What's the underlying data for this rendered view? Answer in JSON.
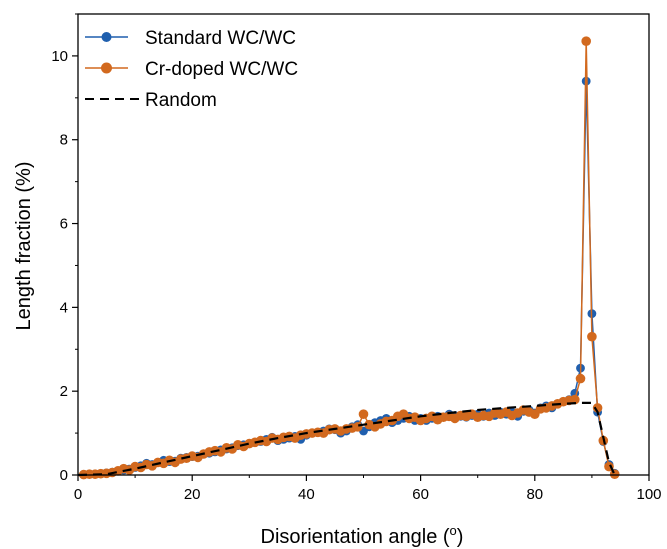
{
  "chart_data": {
    "type": "line",
    "xlabel": "Disorientation angle (",
    "xlabel_sup": "o",
    "xlabel_end": ")",
    "ylabel": "Length fraction (%)",
    "xlim": [
      0,
      100
    ],
    "ylim": [
      0,
      11
    ],
    "xticks": [
      "0",
      "20",
      "40",
      "60",
      "80",
      "100"
    ],
    "yticks": [
      "0",
      "2",
      "4",
      "6",
      "8",
      "10"
    ],
    "legend_position": "top-left",
    "grid": false,
    "series": [
      {
        "name": "Standard WC/WC",
        "color": "#1f5fae",
        "style": "line-marker",
        "x": [
          1,
          2,
          3,
          4,
          5,
          6,
          7,
          8,
          9,
          10,
          11,
          12,
          13,
          14,
          15,
          16,
          17,
          18,
          19,
          20,
          21,
          22,
          23,
          24,
          25,
          26,
          27,
          28,
          29,
          30,
          31,
          32,
          33,
          34,
          35,
          36,
          37,
          38,
          39,
          40,
          41,
          42,
          43,
          44,
          45,
          46,
          47,
          48,
          49,
          50,
          51,
          52,
          53,
          54,
          55,
          56,
          57,
          58,
          59,
          60,
          61,
          62,
          63,
          64,
          65,
          66,
          67,
          68,
          69,
          70,
          71,
          72,
          73,
          74,
          75,
          76,
          77,
          78,
          79,
          80,
          81,
          82,
          83,
          84,
          85,
          86,
          87,
          88,
          89,
          90,
          91,
          92,
          93,
          94
        ],
        "y": [
          0.01,
          0.02,
          0.02,
          0.03,
          0.05,
          0.07,
          0.1,
          0.12,
          0.14,
          0.18,
          0.22,
          0.28,
          0.25,
          0.3,
          0.35,
          0.32,
          0.33,
          0.4,
          0.42,
          0.44,
          0.45,
          0.5,
          0.52,
          0.55,
          0.6,
          0.62,
          0.65,
          0.7,
          0.72,
          0.75,
          0.78,
          0.8,
          0.85,
          0.9,
          0.82,
          0.85,
          0.88,
          0.92,
          0.85,
          0.95,
          1.0,
          1.02,
          1.05,
          1.1,
          1.08,
          1.0,
          1.05,
          1.15,
          1.2,
          1.05,
          1.15,
          1.25,
          1.3,
          1.35,
          1.25,
          1.3,
          1.35,
          1.4,
          1.3,
          1.35,
          1.3,
          1.35,
          1.4,
          1.38,
          1.45,
          1.42,
          1.4,
          1.38,
          1.42,
          1.45,
          1.4,
          1.48,
          1.42,
          1.5,
          1.45,
          1.5,
          1.4,
          1.52,
          1.55,
          1.48,
          1.6,
          1.65,
          1.6,
          1.7,
          1.75,
          1.8,
          1.95,
          2.55,
          9.4,
          3.85,
          1.5,
          0.8,
          0.25,
          0.04
        ]
      },
      {
        "name": "Cr-doped WC/WC",
        "color": "#d2691e",
        "style": "line-marker",
        "x": [
          1,
          2,
          3,
          4,
          5,
          6,
          7,
          8,
          9,
          10,
          11,
          12,
          13,
          14,
          15,
          16,
          17,
          18,
          19,
          20,
          21,
          22,
          23,
          24,
          25,
          26,
          27,
          28,
          29,
          30,
          31,
          32,
          33,
          34,
          35,
          36,
          37,
          38,
          39,
          40,
          41,
          42,
          43,
          44,
          45,
          46,
          47,
          48,
          49,
          50,
          51,
          52,
          53,
          54,
          55,
          56,
          57,
          58,
          59,
          60,
          61,
          62,
          63,
          64,
          65,
          66,
          67,
          68,
          69,
          70,
          71,
          72,
          73,
          74,
          75,
          76,
          77,
          78,
          79,
          80,
          81,
          82,
          83,
          84,
          85,
          86,
          87,
          88,
          89,
          90,
          91,
          92,
          93,
          94
        ],
        "y": [
          0.01,
          0.02,
          0.02,
          0.03,
          0.04,
          0.06,
          0.1,
          0.15,
          0.12,
          0.2,
          0.18,
          0.25,
          0.22,
          0.3,
          0.28,
          0.35,
          0.3,
          0.38,
          0.4,
          0.45,
          0.42,
          0.5,
          0.55,
          0.58,
          0.55,
          0.65,
          0.62,
          0.72,
          0.68,
          0.75,
          0.78,
          0.82,
          0.8,
          0.88,
          0.85,
          0.9,
          0.92,
          0.88,
          0.95,
          0.98,
          1.0,
          1.02,
          1.0,
          1.08,
          1.1,
          1.05,
          1.1,
          1.12,
          1.15,
          1.45,
          1.2,
          1.15,
          1.22,
          1.28,
          1.3,
          1.4,
          1.45,
          1.35,
          1.38,
          1.3,
          1.35,
          1.4,
          1.32,
          1.38,
          1.4,
          1.35,
          1.42,
          1.4,
          1.45,
          1.38,
          1.42,
          1.4,
          1.48,
          1.45,
          1.5,
          1.42,
          1.48,
          1.55,
          1.5,
          1.45,
          1.58,
          1.6,
          1.65,
          1.7,
          1.75,
          1.78,
          1.8,
          2.3,
          10.35,
          3.3,
          1.6,
          0.82,
          0.2,
          0.02
        ]
      },
      {
        "name": "Random",
        "color": "#000000",
        "style": "dashed",
        "x": [
          0,
          5,
          10,
          15,
          20,
          25,
          30,
          35,
          40,
          45,
          50,
          55,
          60,
          65,
          70,
          75,
          80,
          85,
          88,
          90,
          91,
          92,
          93,
          94
        ],
        "y": [
          0.0,
          0.02,
          0.15,
          0.3,
          0.45,
          0.6,
          0.75,
          0.88,
          1.0,
          1.1,
          1.2,
          1.3,
          1.4,
          1.48,
          1.55,
          1.6,
          1.65,
          1.7,
          1.72,
          1.72,
          1.5,
          0.9,
          0.3,
          0.0
        ]
      }
    ]
  }
}
